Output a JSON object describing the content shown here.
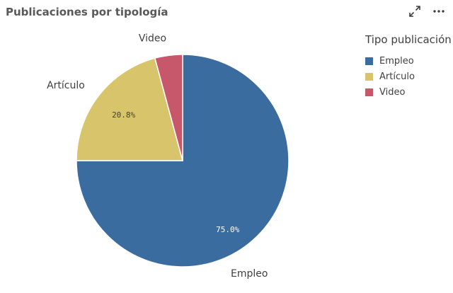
{
  "header": {
    "title": "Publicaciones por tipología",
    "expand_icon": "expand-icon",
    "more_icon": "more-options-icon"
  },
  "chart_data": {
    "type": "pie",
    "title": "Publicaciones por tipología",
    "legend_title": "Tipo publicación",
    "legend_position": "right",
    "slices": [
      {
        "label": "Empleo",
        "value": 75.0,
        "value_label": "75.0%",
        "color": "#3a6c9f"
      },
      {
        "label": "Artículo",
        "value": 20.8,
        "value_label": "20.8%",
        "color": "#d8c46a"
      },
      {
        "label": "Video",
        "value": 4.2,
        "value_label": "",
        "color": "#c7576a"
      }
    ]
  }
}
